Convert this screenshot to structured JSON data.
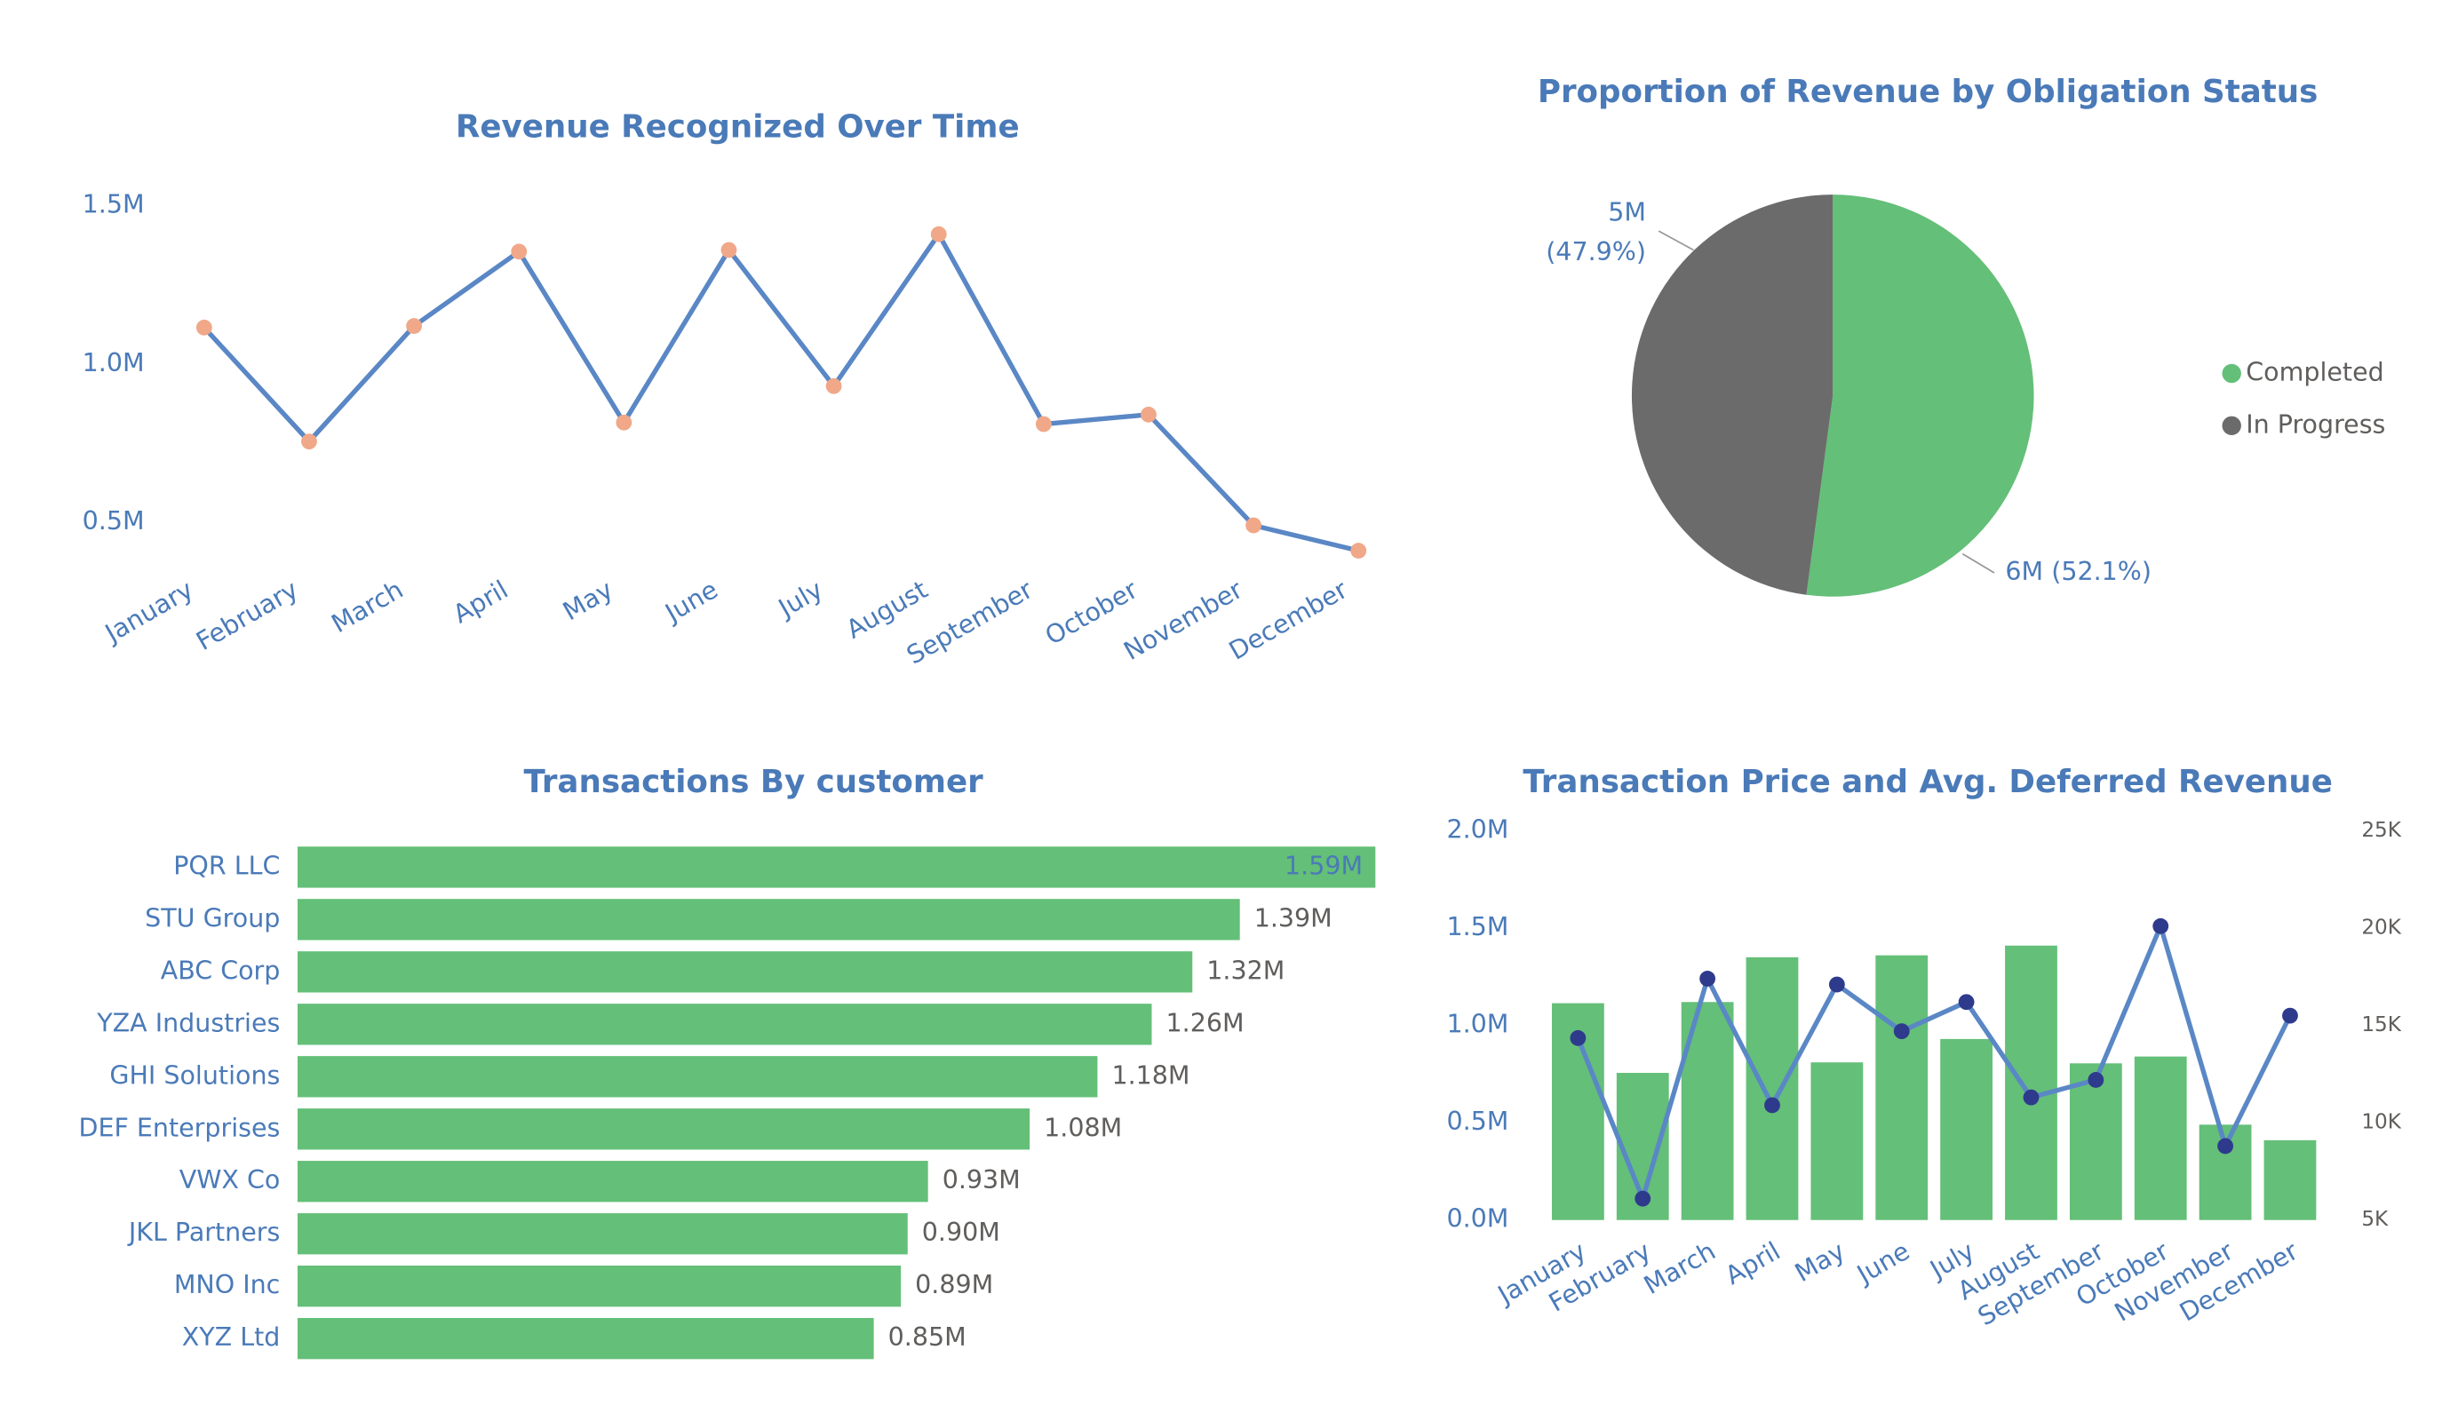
{
  "chart_data": [
    {
      "type": "line",
      "title": "Revenue Recognized Over Time",
      "categories": [
        "January",
        "February",
        "March",
        "April",
        "May",
        "June",
        "July",
        "August",
        "September",
        "October",
        "November",
        "December"
      ],
      "values": [
        1115000,
        755000,
        1120000,
        1355000,
        815000,
        1360000,
        930000,
        1410000,
        810000,
        840000,
        490000,
        410000
      ],
      "color": "#5a87c5",
      "marker_color": "#f0a889",
      "ylim": [
        380000,
        1550000
      ],
      "yticks": [
        {
          "value": 500000,
          "label": "0.5M"
        },
        {
          "value": 1000000,
          "label": "1.0M"
        },
        {
          "value": 1500000,
          "label": "1.5M"
        }
      ]
    },
    {
      "type": "pie",
      "title": "Proportion of Revenue by Obligation Status",
      "categories": [
        "Completed",
        "In Progress"
      ],
      "values": [
        52.1,
        47.9
      ],
      "value_labels": [
        "6M (52.1%)",
        "5M (47.9%)"
      ],
      "colors": [
        "#64bf78",
        "#6b6b6b"
      ],
      "legend": "right"
    },
    {
      "type": "hbar",
      "title": "Transactions By customer",
      "categories": [
        "PQR LLC",
        "STU Group",
        "ABC Corp",
        "YZA Industries",
        "GHI Solutions",
        "DEF Enterprises",
        "VWX Co",
        "JKL Partners",
        "MNO Inc",
        "XYZ Ltd"
      ],
      "values": [
        1590000,
        1390000,
        1320000,
        1260000,
        1180000,
        1080000,
        930000,
        900000,
        890000,
        850000
      ],
      "value_labels": [
        "1.59M",
        "1.39M",
        "1.32M",
        "1.26M",
        "1.18M",
        "1.08M",
        "0.93M",
        "0.90M",
        "0.89M",
        "0.85M"
      ],
      "color": "#64bf78",
      "xlim": [
        0,
        1590000
      ]
    },
    {
      "type": "combo",
      "title": "Transaction Price and Avg. Deferred Revenue",
      "categories": [
        "January",
        "February",
        "March",
        "April",
        "May",
        "June",
        "July",
        "August",
        "September",
        "October",
        "November",
        "December"
      ],
      "series": [
        {
          "type": "bar",
          "color": "#64bf78",
          "values": [
            1114000,
            756000,
            1120000,
            1350000,
            810000,
            1360000,
            930000,
            1410000,
            805000,
            840000,
            490000,
            410000
          ]
        },
        {
          "type": "line",
          "axis": "y2",
          "color": "#5a87c5",
          "marker_color": "#2e3a8c",
          "values": [
            14350,
            6100,
            17400,
            10900,
            17100,
            14700,
            16200,
            11300,
            12200,
            20100,
            8800,
            15500
          ]
        }
      ],
      "ylim": [
        0,
        2000000
      ],
      "yticks": [
        {
          "value": 0,
          "label": "0.0M"
        },
        {
          "value": 500000,
          "label": "0.5M"
        },
        {
          "value": 1000000,
          "label": "1.0M"
        },
        {
          "value": 1500000,
          "label": "1.5M"
        },
        {
          "value": 2000000,
          "label": "2.0M"
        }
      ],
      "y2lim": [
        5000,
        25000
      ],
      "y2ticks": [
        {
          "value": 5000,
          "label": "5K"
        },
        {
          "value": 10000,
          "label": "10K"
        },
        {
          "value": 15000,
          "label": "15K"
        },
        {
          "value": 20000,
          "label": "20K"
        },
        {
          "value": 25000,
          "label": "25K"
        }
      ]
    }
  ]
}
